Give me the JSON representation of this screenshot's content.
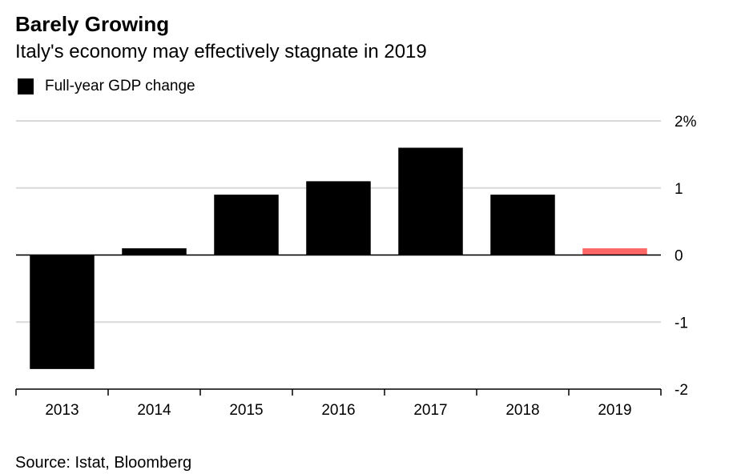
{
  "title": "Barely Growing",
  "subtitle": "Italy's economy may effectively stagnate in 2019",
  "legend": {
    "label": "Full-year GDP change",
    "color": "#000000"
  },
  "source": "Source: Istat, Bloomberg",
  "colors": {
    "bar": "#000000",
    "highlight": "#ff6666",
    "grid": "#d9d9d9",
    "axis": "#000000"
  },
  "chart_data": {
    "type": "bar",
    "categories": [
      "2013",
      "2014",
      "2015",
      "2016",
      "2017",
      "2018",
      "2019"
    ],
    "values": [
      -1.7,
      0.1,
      0.9,
      1.1,
      1.6,
      0.9,
      0.1
    ],
    "highlight_index": 6,
    "ylim": [
      -2,
      2
    ],
    "yticks": [
      2,
      1,
      0,
      -1,
      -2
    ],
    "ytick_labels": [
      "2%",
      "1",
      "0",
      "-1",
      "-2"
    ],
    "y_axis_position": "right",
    "grid": true,
    "legend_position": "top-left"
  }
}
